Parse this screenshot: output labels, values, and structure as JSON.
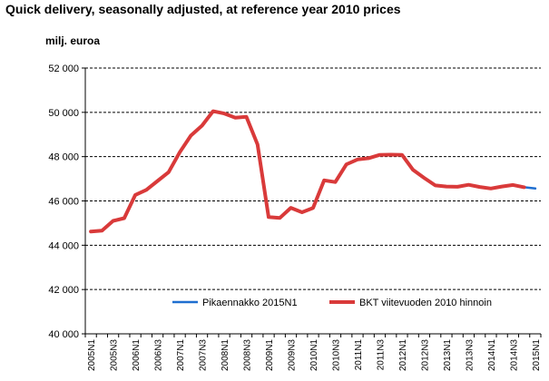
{
  "chart_data": {
    "type": "line",
    "title": "Quick delivery, seasonally adjusted, at reference year 2010 prices",
    "ylabel": "milj. euroa",
    "xlabel": "",
    "ylim": [
      40000,
      52000
    ],
    "yticks": [
      40000,
      42000,
      44000,
      46000,
      48000,
      50000,
      52000
    ],
    "ytick_labels": [
      "40 000",
      "42 000",
      "44 000",
      "46 000",
      "48 000",
      "50 000",
      "52 000"
    ],
    "grid": "horizontal dashed",
    "legend_position": "bottom",
    "categories": [
      "2005N1",
      "2005N2",
      "2005N3",
      "2005N4",
      "2006N1",
      "2006N2",
      "2006N3",
      "2006N4",
      "2007N1",
      "2007N2",
      "2007N3",
      "2007N4",
      "2008N1",
      "2008N2",
      "2008N3",
      "2008N4",
      "2009N1",
      "2009N2",
      "2009N3",
      "2009N4",
      "2010N1",
      "2010N2",
      "2010N3",
      "2010N4",
      "2011N1",
      "2011N2",
      "2011N3",
      "2011N4",
      "2012N1",
      "2012N2",
      "2012N3",
      "2012N4",
      "2013N1",
      "2013N2",
      "2013N3",
      "2013N4",
      "2014N1",
      "2014N2",
      "2014N3",
      "2014N4",
      "2015N1"
    ],
    "tick_labels": [
      "2005N1",
      "2005N3",
      "2006N1",
      "2006N3",
      "2007N1",
      "2007N3",
      "2008N1",
      "2008N3",
      "2009N1",
      "2009N3",
      "2010N1",
      "2010N3",
      "2011N1",
      "2011N3",
      "2012N1",
      "2012N3",
      "2013N1",
      "2013N3",
      "2014N1",
      "2014N3",
      "2015N1"
    ],
    "series": [
      {
        "name": "BKT viitevuoden 2010 hinnoin",
        "color": "#d93a3a",
        "values": [
          44620,
          44660,
          45100,
          45220,
          46270,
          46500,
          46900,
          47300,
          48200,
          48950,
          49400,
          50050,
          49950,
          49760,
          49800,
          48550,
          45270,
          45230,
          45690,
          45490,
          45680,
          46930,
          46850,
          47650,
          47870,
          47930,
          48080,
          48090,
          48080,
          47400,
          47040,
          46700,
          46650,
          46640,
          46730,
          46630,
          46560,
          46650,
          46720,
          46620,
          null
        ]
      },
      {
        "name": "Pikaennakko 2015N1",
        "color": "#1f6fd0",
        "values": [
          null,
          null,
          null,
          null,
          null,
          null,
          null,
          null,
          null,
          null,
          null,
          null,
          null,
          null,
          null,
          null,
          null,
          null,
          null,
          null,
          null,
          null,
          null,
          null,
          null,
          null,
          null,
          null,
          null,
          null,
          null,
          null,
          null,
          null,
          null,
          null,
          null,
          null,
          null,
          46620,
          46560
        ]
      }
    ]
  }
}
